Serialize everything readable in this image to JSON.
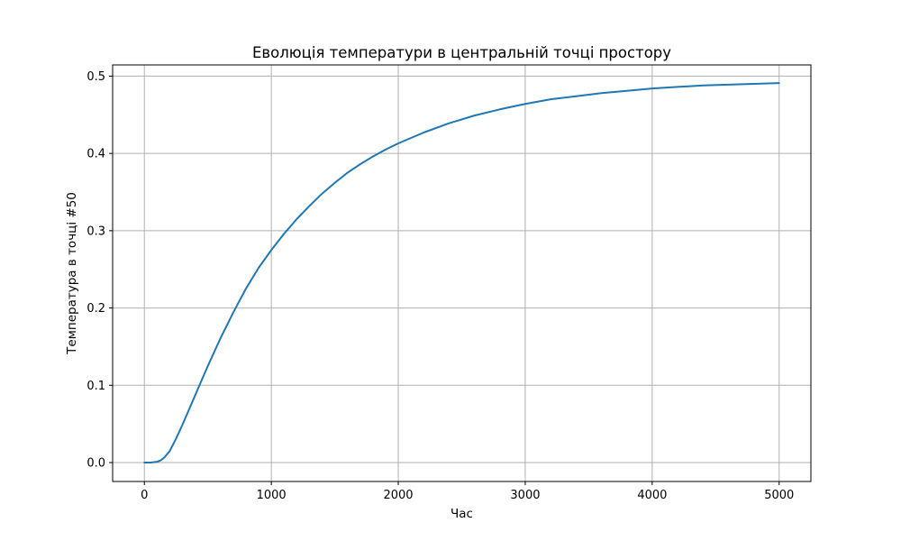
{
  "chart_data": {
    "type": "line",
    "title": "Еволюція температури в центральній точці простору",
    "xlabel": "Час",
    "ylabel": "Температура в точці #50",
    "xlim": [
      -250,
      5250
    ],
    "ylim": [
      -0.0245,
      0.5145
    ],
    "grid": true,
    "x_ticks": [
      0,
      1000,
      2000,
      3000,
      4000,
      5000
    ],
    "y_ticks": [
      0.0,
      0.1,
      0.2,
      0.3,
      0.4,
      0.5
    ],
    "x_tick_labels": [
      "0",
      "1000",
      "2000",
      "3000",
      "4000",
      "5000"
    ],
    "y_tick_labels": [
      "0.0",
      "0.1",
      "0.2",
      "0.3",
      "0.4",
      "0.5"
    ],
    "series": [
      {
        "color": "#1f77b4",
        "x": [
          0,
          50,
          100,
          130,
          160,
          200,
          250,
          300,
          350,
          400,
          450,
          500,
          600,
          700,
          800,
          900,
          1000,
          1100,
          1200,
          1300,
          1400,
          1500,
          1600,
          1700,
          1800,
          1900,
          2000,
          2200,
          2400,
          2600,
          2800,
          3000,
          3200,
          3400,
          3600,
          3800,
          4000,
          4200,
          4400,
          4600,
          4800,
          5000
        ],
        "y": [
          0.0,
          0.0,
          0.001,
          0.003,
          0.007,
          0.015,
          0.031,
          0.049,
          0.068,
          0.087,
          0.106,
          0.125,
          0.161,
          0.194,
          0.225,
          0.252,
          0.275,
          0.296,
          0.315,
          0.332,
          0.348,
          0.362,
          0.375,
          0.386,
          0.396,
          0.405,
          0.413,
          0.427,
          0.439,
          0.449,
          0.457,
          0.464,
          0.47,
          0.474,
          0.478,
          0.481,
          0.484,
          0.486,
          0.488,
          0.489,
          0.49,
          0.491
        ]
      }
    ]
  }
}
